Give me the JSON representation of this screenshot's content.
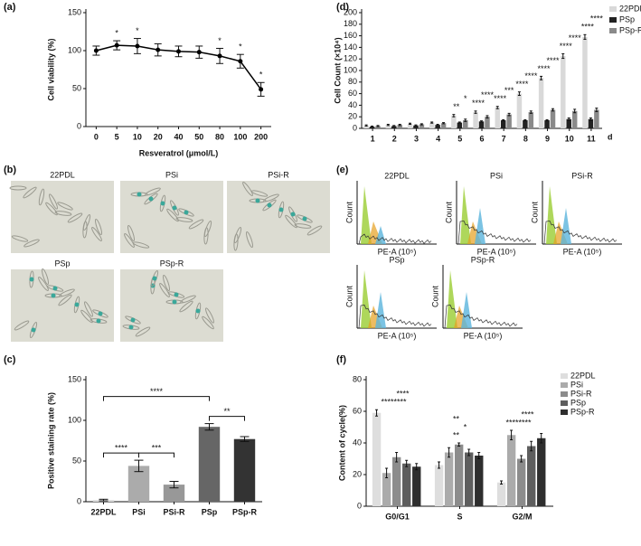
{
  "chart_data": [
    {
      "panel_label": "(a)",
      "type": "line",
      "y_label": "Cell viability (%)",
      "x_label": "Resveratrol (μmol/L)",
      "categories": [
        "0",
        "5",
        "10",
        "20",
        "40",
        "50",
        "80",
        "100",
        "200"
      ],
      "values": [
        100,
        107,
        106,
        101,
        99,
        98,
        93,
        86,
        49
      ],
      "errors": [
        6,
        6,
        10,
        8,
        7,
        8,
        10,
        9,
        9
      ],
      "color": "#000000",
      "ylim": [
        0,
        150
      ],
      "yticks": [
        0,
        50,
        100,
        150
      ],
      "annotations": [
        {
          "category": "5",
          "texts": [
            "*"
          ]
        },
        {
          "category": "10",
          "texts": [
            "*"
          ]
        },
        {
          "category": "80",
          "texts": [
            "*"
          ]
        },
        {
          "category": "100",
          "texts": [
            "*"
          ]
        },
        {
          "category": "200",
          "texts": [
            "*"
          ]
        }
      ]
    },
    {
      "panel_label": "(d)",
      "type": "grouped_bar",
      "y_label": "Cell Count (×10⁴)",
      "x_label": "d",
      "categories": [
        "1",
        "2",
        "3",
        "4",
        "5",
        "6",
        "7",
        "8",
        "9",
        "10",
        "11"
      ],
      "series": [
        {
          "name": "22PDL",
          "color": "#d9d9d9",
          "values": [
            5,
            6,
            8,
            10,
            22,
            28,
            36,
            60,
            87,
            125,
            158
          ],
          "errors": [
            1,
            1,
            1,
            1,
            2,
            2,
            2,
            3,
            3,
            4,
            4
          ]
        },
        {
          "name": "PSp",
          "color": "#222222",
          "values": [
            3,
            4,
            5,
            6,
            10,
            12,
            14,
            14,
            14,
            16,
            16
          ],
          "errors": [
            1,
            1,
            1,
            1,
            1,
            1,
            1,
            1,
            1,
            2,
            2
          ]
        },
        {
          "name": "PSp-R",
          "color": "#8a8a8a",
          "values": [
            4,
            6,
            7,
            9,
            14,
            20,
            24,
            28,
            32,
            30,
            32
          ],
          "errors": [
            1,
            1,
            1,
            1,
            2,
            2,
            2,
            2,
            2,
            3,
            3
          ]
        }
      ],
      "ylim": [
        0,
        200
      ],
      "yticks": [
        0,
        20,
        40,
        60,
        80,
        100,
        120,
        140,
        160,
        180,
        200
      ],
      "legend": "upper right",
      "annotations": [
        {
          "category": "5",
          "texts": [
            "**",
            "*"
          ]
        },
        {
          "category": "6",
          "texts": [
            "****",
            "****"
          ]
        },
        {
          "category": "7",
          "texts": [
            "****",
            "***"
          ]
        },
        {
          "category": "8",
          "texts": [
            "****",
            "****"
          ]
        },
        {
          "category": "9",
          "texts": [
            "****",
            "****"
          ]
        },
        {
          "category": "10",
          "texts": [
            "****",
            "****"
          ]
        },
        {
          "category": "11",
          "texts": [
            "****",
            "****"
          ]
        }
      ]
    },
    {
      "panel_label": "(c)",
      "type": "bar",
      "y_label": "Positive staining rate (%)",
      "categories": [
        "22PDL",
        "PSi",
        "PSi-R",
        "PSp",
        "PSp-R"
      ],
      "values": [
        2,
        44,
        21,
        92,
        77
      ],
      "errors": [
        1,
        7,
        4,
        4,
        3
      ],
      "colors": [
        "#d9d9d9",
        "#ababab",
        "#989898",
        "#666666",
        "#333333"
      ],
      "ylim": [
        0,
        150
      ],
      "yticks": [
        0,
        50,
        100,
        150
      ],
      "brackets": [
        {
          "from": "22PDL",
          "to": "PSi",
          "text": "****"
        },
        {
          "from": "PSi",
          "to": "PSi-R",
          "text": "***"
        },
        {
          "from": "22PDL",
          "to": "PSp",
          "text": "****"
        },
        {
          "from": "PSp",
          "to": "PSp-R",
          "text": "**"
        }
      ]
    },
    {
      "panel_label": "(f)",
      "type": "grouped_bar",
      "y_label": "Content of cycle(%)",
      "categories": [
        "G0/G1",
        "S",
        "G2/M"
      ],
      "series": [
        {
          "name": "22PDL",
          "color": "#dedede",
          "values": [
            59,
            26,
            15
          ],
          "errors": [
            2,
            2,
            1
          ]
        },
        {
          "name": "PSi",
          "color": "#ababab",
          "values": [
            21,
            34,
            45
          ],
          "errors": [
            3,
            3,
            3
          ]
        },
        {
          "name": "PSi-R",
          "color": "#8c8c8c",
          "values": [
            31,
            39,
            30
          ],
          "errors": [
            3,
            1,
            2
          ]
        },
        {
          "name": "PSp",
          "color": "#5e5e5e",
          "values": [
            27,
            34,
            38
          ],
          "errors": [
            2,
            2,
            3
          ]
        },
        {
          "name": "PSp-R",
          "color": "#2e2e2e",
          "values": [
            25,
            32,
            43
          ],
          "errors": [
            2,
            2,
            3
          ]
        }
      ],
      "ylim": [
        0,
        80
      ],
      "yticks": [
        0,
        20,
        40,
        60,
        80
      ],
      "legend": "upper right",
      "annotations": [
        {
          "category": "G0/G1",
          "texts": [
            "********",
            "****"
          ]
        },
        {
          "category": "S",
          "texts": [
            "**",
            "*",
            "**"
          ]
        },
        {
          "category": "G2/M",
          "texts": [
            "********",
            "****"
          ]
        }
      ]
    }
  ],
  "image_panels": [
    {
      "panel_label": "(b)",
      "labels": [
        "22PDL",
        "PSi",
        "PSi-R",
        "PSp",
        "PSp-R"
      ]
    },
    {
      "panel_label": "(e)",
      "labels": [
        "22PDL",
        "PSi",
        "PSi-R",
        "PSp",
        "PSp-R"
      ],
      "x_label": "PE-A (10⁵)",
      "y_label": "Count"
    }
  ]
}
